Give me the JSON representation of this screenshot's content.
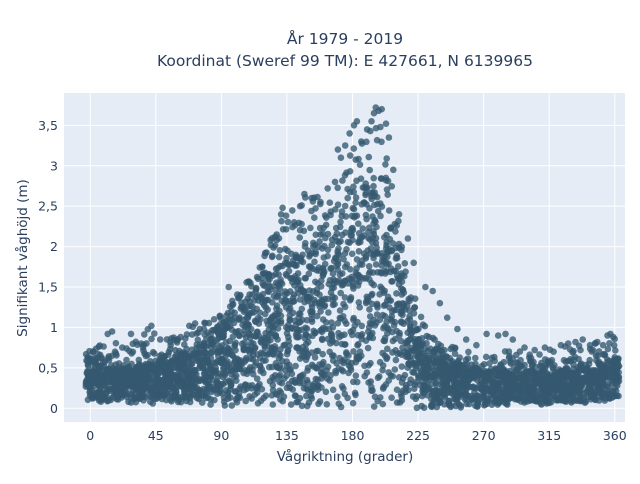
{
  "chart_data": {
    "type": "scatter",
    "title": [
      "År 1979 - 2019",
      "Koordinat (Sweref 99 TM): E 427661, N 6139965"
    ],
    "xlabel": "Vågriktning (grader)",
    "ylabel": "Signifikant våghöjd (m)",
    "xlim": [
      -18,
      367
    ],
    "ylim": [
      -0.17,
      3.9
    ],
    "x_ticks": [
      0,
      45,
      90,
      135,
      180,
      225,
      270,
      315,
      360
    ],
    "x_tick_labels": [
      "0",
      "45",
      "90",
      "135",
      "180",
      "225",
      "270",
      "315",
      "360"
    ],
    "y_ticks": [
      0,
      0.5,
      1,
      1.5,
      2,
      2.5,
      3,
      3.5
    ],
    "y_tick_labels": [
      "0",
      "0,5",
      "1",
      "1,5",
      "2",
      "2,5",
      "3",
      "3,5"
    ],
    "grid": true,
    "legend": "none",
    "marker_color": "#34596f",
    "plot_bgcolor": "#e5ecf6",
    "envelope": {
      "x": [
        0,
        10,
        20,
        30,
        40,
        50,
        60,
        70,
        80,
        90,
        100,
        110,
        120,
        130,
        140,
        150,
        160,
        170,
        180,
        185,
        190,
        195,
        200,
        205,
        210,
        215,
        220,
        225,
        230,
        240,
        250,
        260,
        270,
        280,
        290,
        300,
        310,
        320,
        330,
        340,
        350,
        360
      ],
      "min_y": [
        0.1,
        0.08,
        0.08,
        0.07,
        0.07,
        0.05,
        0.05,
        0.05,
        0.04,
        0.03,
        0.02,
        0.02,
        0.01,
        0,
        0,
        0,
        0,
        0,
        0,
        0,
        0,
        0,
        0,
        0,
        0,
        0,
        0,
        0,
        0,
        0.02,
        0.02,
        0.03,
        0.03,
        0.04,
        0.05,
        0.05,
        0.05,
        0.07,
        0.07,
        0.08,
        0.1,
        0.12
      ],
      "dense_top_y": [
        0.58,
        0.5,
        0.48,
        0.5,
        0.55,
        0.58,
        0.65,
        0.7,
        0.8,
        0.95,
        1.15,
        1.4,
        1.6,
        1.75,
        1.85,
        1.95,
        2.05,
        2.25,
        2.45,
        2.55,
        2.7,
        2.65,
        2.55,
        2.25,
        1.9,
        1.55,
        1.2,
        0.95,
        0.8,
        0.65,
        0.55,
        0.5,
        0.45,
        0.45,
        0.45,
        0.45,
        0.45,
        0.45,
        0.45,
        0.5,
        0.55,
        0.6
      ],
      "max_y": [
        0.73,
        0.85,
        0.95,
        0.9,
        1.02,
        0.85,
        0.9,
        1.05,
        1.1,
        1.2,
        1.45,
        1.6,
        1.95,
        2.3,
        2.5,
        2.65,
        2.6,
        2.9,
        3.2,
        3.35,
        3.55,
        3.72,
        3.7,
        3.35,
        2.6,
        2.0,
        1.55,
        1.3,
        1.0,
        0.8,
        0.75,
        0.72,
        0.7,
        0.7,
        0.72,
        0.68,
        0.68,
        0.78,
        0.8,
        0.85,
        0.9,
        0.9
      ]
    },
    "outliers": [
      {
        "x": 8,
        "y": 0.62
      },
      {
        "x": 12,
        "y": 0.92
      },
      {
        "x": 15,
        "y": 0.95
      },
      {
        "x": 22,
        "y": 0.75
      },
      {
        "x": 28,
        "y": 0.92
      },
      {
        "x": 35,
        "y": 0.8
      },
      {
        "x": 42,
        "y": 1.02
      },
      {
        "x": 48,
        "y": 0.85
      },
      {
        "x": 55,
        "y": 0.82
      },
      {
        "x": 62,
        "y": 0.88
      },
      {
        "x": 68,
        "y": 1.02
      },
      {
        "x": 72,
        "y": 1.05
      },
      {
        "x": 78,
        "y": 0.98
      },
      {
        "x": 85,
        "y": 1.1
      },
      {
        "x": 95,
        "y": 1.5
      },
      {
        "x": 103,
        "y": 1.4
      },
      {
        "x": 110,
        "y": 1.55
      },
      {
        "x": 118,
        "y": 1.75
      },
      {
        "x": 124,
        "y": 2.02
      },
      {
        "x": 128,
        "y": 2.15
      },
      {
        "x": 131,
        "y": 2.4
      },
      {
        "x": 132,
        "y": 2.48
      },
      {
        "x": 140,
        "y": 2.3
      },
      {
        "x": 144,
        "y": 2.5
      },
      {
        "x": 147,
        "y": 2.65
      },
      {
        "x": 152,
        "y": 2.6
      },
      {
        "x": 158,
        "y": 2.55
      },
      {
        "x": 163,
        "y": 2.72
      },
      {
        "x": 168,
        "y": 2.8
      },
      {
        "x": 170,
        "y": 3.2
      },
      {
        "x": 172,
        "y": 3.1
      },
      {
        "x": 175,
        "y": 3.25
      },
      {
        "x": 178,
        "y": 3.4
      },
      {
        "x": 181,
        "y": 3.5
      },
      {
        "x": 183,
        "y": 3.55
      },
      {
        "x": 186,
        "y": 3.3
      },
      {
        "x": 190,
        "y": 3.45
      },
      {
        "x": 193,
        "y": 3.55
      },
      {
        "x": 196,
        "y": 3.72
      },
      {
        "x": 198,
        "y": 3.68
      },
      {
        "x": 200,
        "y": 3.7
      },
      {
        "x": 203,
        "y": 3.52
      },
      {
        "x": 205,
        "y": 3.35
      },
      {
        "x": 208,
        "y": 2.95
      },
      {
        "x": 212,
        "y": 2.4
      },
      {
        "x": 218,
        "y": 2.1
      },
      {
        "x": 222,
        "y": 1.8
      },
      {
        "x": 230,
        "y": 1.5
      },
      {
        "x": 235,
        "y": 1.45
      },
      {
        "x": 240,
        "y": 1.3
      },
      {
        "x": 245,
        "y": 1.12
      },
      {
        "x": 252,
        "y": 0.98
      },
      {
        "x": 258,
        "y": 0.85
      },
      {
        "x": 265,
        "y": 0.78
      },
      {
        "x": 272,
        "y": 0.92
      },
      {
        "x": 280,
        "y": 0.9
      },
      {
        "x": 285,
        "y": 0.92
      },
      {
        "x": 290,
        "y": 0.85
      },
      {
        "x": 298,
        "y": 0.75
      },
      {
        "x": 305,
        "y": 0.72
      },
      {
        "x": 312,
        "y": 0.75
      },
      {
        "x": 318,
        "y": 0.7
      },
      {
        "x": 323,
        "y": 0.78
      },
      {
        "x": 328,
        "y": 0.8
      },
      {
        "x": 333,
        "y": 0.82
      },
      {
        "x": 338,
        "y": 0.85
      },
      {
        "x": 343,
        "y": 0.78
      },
      {
        "x": 348,
        "y": 0.82
      },
      {
        "x": 352,
        "y": 0.78
      },
      {
        "x": 355,
        "y": 0.9
      },
      {
        "x": 357,
        "y": 0.92
      },
      {
        "x": 359,
        "y": 0.88
      }
    ]
  }
}
